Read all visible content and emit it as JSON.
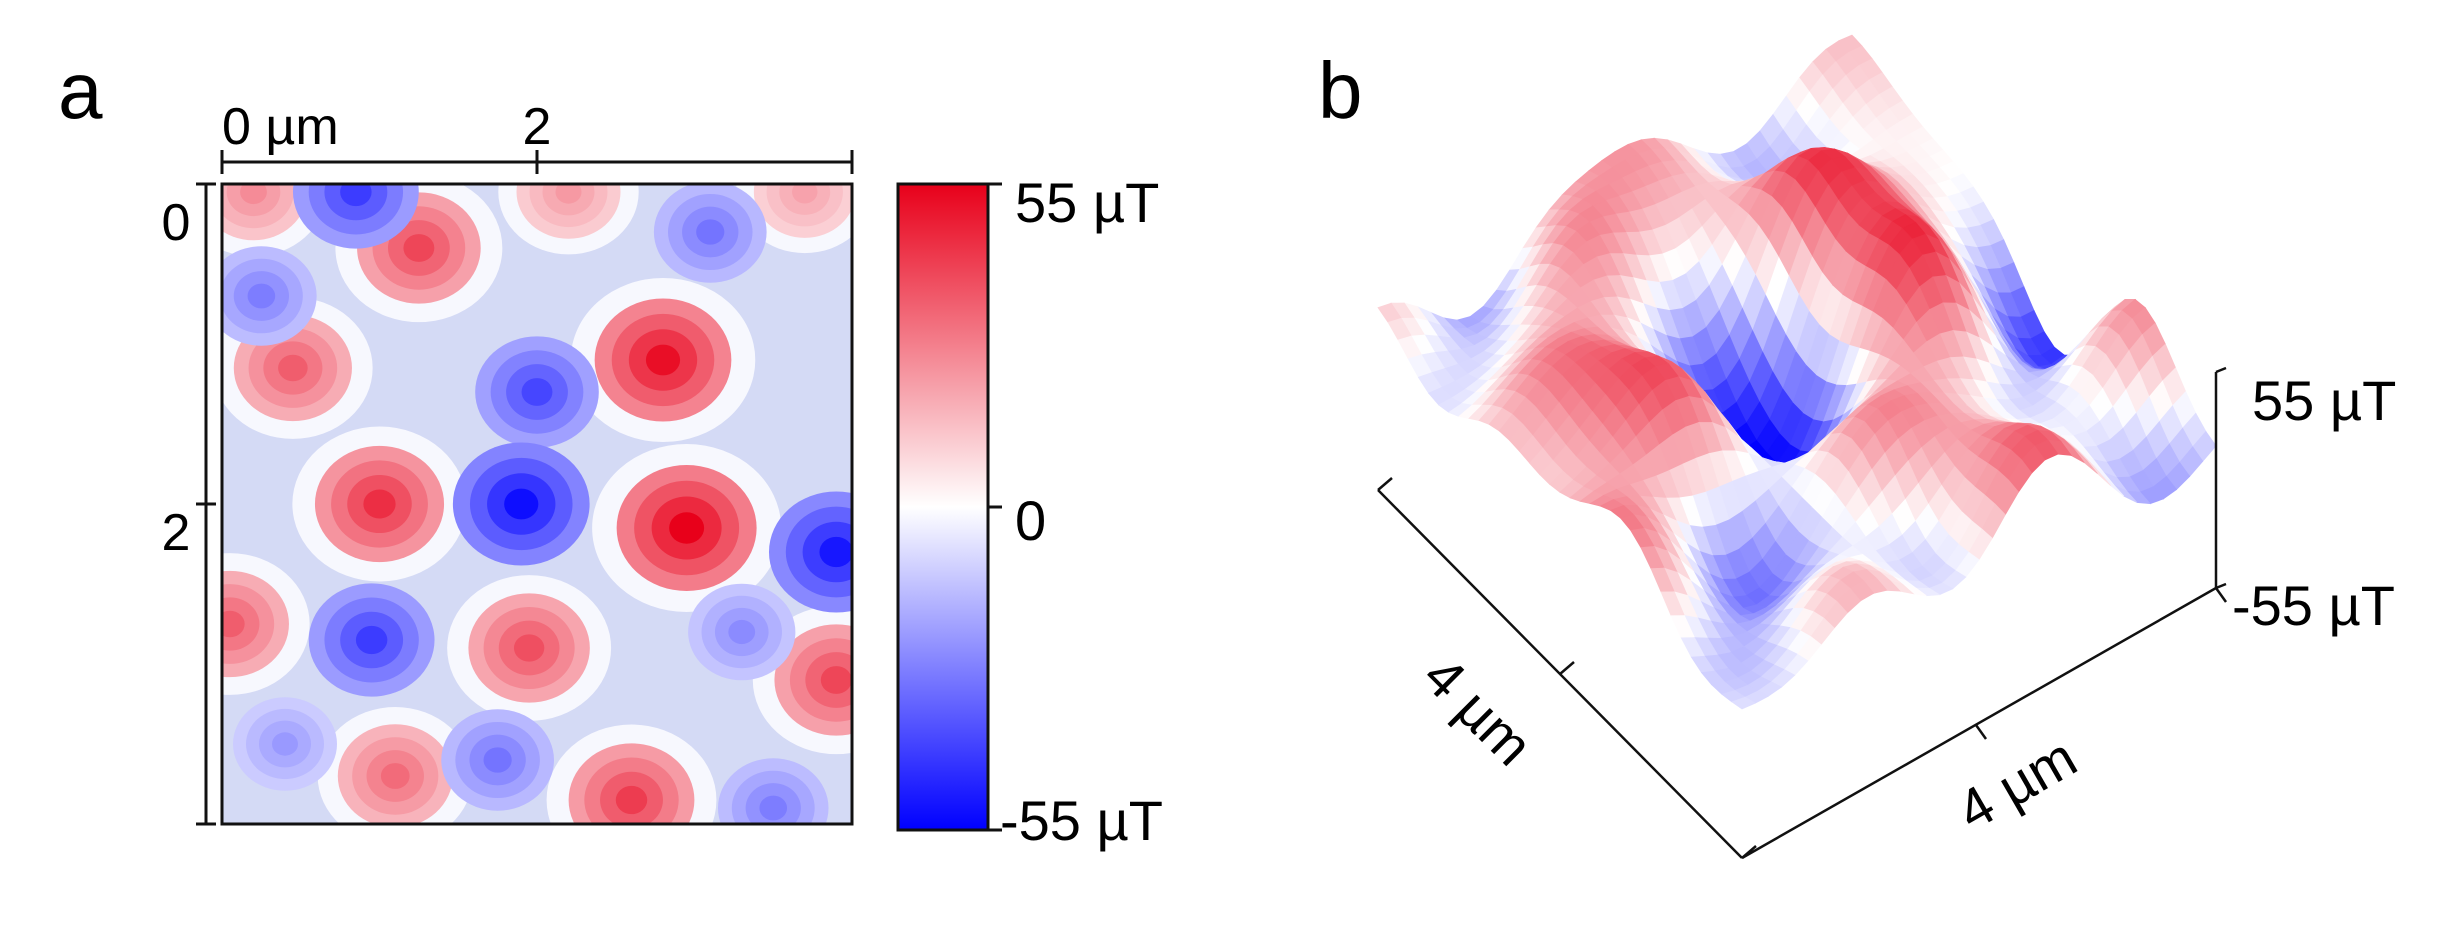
{
  "panels": {
    "a": {
      "letter": "a"
    },
    "b": {
      "letter": "b"
    }
  },
  "colors": {
    "positive": "#e8001a",
    "zero": "#ffffff",
    "negative": "#0000ff"
  },
  "chart_data": [
    {
      "type": "heatmap",
      "panel": "a",
      "x_tick_labels": [
        "0 µm",
        "2",
        ""
      ],
      "y_tick_labels": [
        "0",
        "2",
        ""
      ],
      "x_range": [
        0,
        4
      ],
      "y_range": [
        0,
        4
      ],
      "units": "µm",
      "colorbar": {
        "max_label": "55 µT",
        "zero_label": "0",
        "min_label": "-55 µT",
        "vmin": -55,
        "vmax": 55
      },
      "features": [
        {
          "x": 1.25,
          "y": 0.4,
          "value": 40
        },
        {
          "x": 0.45,
          "y": 1.15,
          "value": 35
        },
        {
          "x": 2.8,
          "y": 1.1,
          "value": 52
        },
        {
          "x": 1.0,
          "y": 2.0,
          "value": 45
        },
        {
          "x": 2.95,
          "y": 2.15,
          "value": 55
        },
        {
          "x": 0.05,
          "y": 2.75,
          "value": 35
        },
        {
          "x": 1.95,
          "y": 2.9,
          "value": 38
        },
        {
          "x": 3.9,
          "y": 3.1,
          "value": 40
        },
        {
          "x": 1.1,
          "y": 3.7,
          "value": 32
        },
        {
          "x": 2.6,
          "y": 3.85,
          "value": 42
        },
        {
          "x": 0.2,
          "y": 0.05,
          "value": 25
        },
        {
          "x": 2.2,
          "y": 0.05,
          "value": 22
        },
        {
          "x": 3.7,
          "y": 0.05,
          "value": 20
        },
        {
          "x": 0.85,
          "y": 0.05,
          "value": -42
        },
        {
          "x": 3.1,
          "y": 0.3,
          "value": -30
        },
        {
          "x": 0.25,
          "y": 0.7,
          "value": -28
        },
        {
          "x": 2.0,
          "y": 1.3,
          "value": -40
        },
        {
          "x": 1.9,
          "y": 2.0,
          "value": -52
        },
        {
          "x": 3.9,
          "y": 2.3,
          "value": -50
        },
        {
          "x": 0.95,
          "y": 2.85,
          "value": -42
        },
        {
          "x": 3.3,
          "y": 2.8,
          "value": -25
        },
        {
          "x": 0.4,
          "y": 3.5,
          "value": -22
        },
        {
          "x": 1.75,
          "y": 3.6,
          "value": -30
        },
        {
          "x": 3.5,
          "y": 3.9,
          "value": -28
        }
      ]
    },
    {
      "type": "surface",
      "panel": "b",
      "x_label": "4 µm",
      "y_label": "4 µm",
      "z_tick_labels": [
        "55 µT",
        "-55 µT"
      ],
      "z_range": [
        -55,
        55
      ]
    }
  ]
}
